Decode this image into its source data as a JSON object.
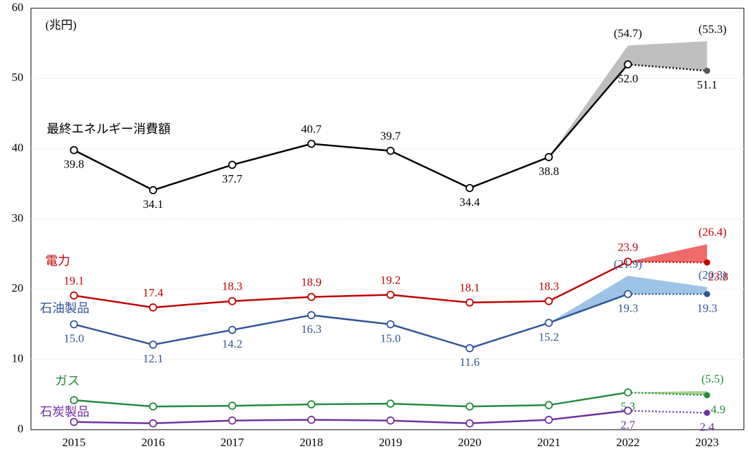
{
  "chart_data": {
    "type": "line",
    "unit_label": "(兆円)",
    "categories": [
      "2015",
      "2016",
      "2017",
      "2018",
      "2019",
      "2020",
      "2021",
      "2022",
      "2023"
    ],
    "ylim": [
      0,
      60
    ],
    "yticks": [
      0,
      10,
      20,
      30,
      40,
      50,
      60
    ],
    "grid": true,
    "dotted_last_segment": true,
    "series": [
      {
        "name": "最終エネルギー消費額",
        "color": "#000000",
        "band_color": "#bfbfbf",
        "values": [
          39.8,
          34.1,
          37.7,
          40.7,
          39.7,
          34.4,
          38.8,
          52.0,
          51.1
        ],
        "value_labels": [
          "39.8",
          "34.1",
          "37.7",
          "40.7",
          "39.7",
          "34.4",
          "38.8",
          "52.0",
          "51.1"
        ],
        "upper": [
          null,
          null,
          null,
          null,
          null,
          null,
          null,
          54.7,
          55.3
        ],
        "upper_labels": [
          null,
          null,
          null,
          null,
          null,
          null,
          null,
          "(54.7)",
          "(55.3)"
        ]
      },
      {
        "name": "電力",
        "color": "#c00000",
        "band_color": "#f06a6a",
        "values": [
          19.1,
          17.4,
          18.3,
          18.9,
          19.2,
          18.1,
          18.3,
          23.9,
          23.8
        ],
        "value_labels": [
          "19.1",
          "17.4",
          "18.3",
          "18.9",
          "19.2",
          "18.1",
          "18.3",
          "23.9",
          "23.8"
        ],
        "upper": [
          null,
          null,
          null,
          null,
          null,
          null,
          null,
          null,
          26.4
        ],
        "upper_labels": [
          null,
          null,
          null,
          null,
          null,
          null,
          null,
          null,
          "(26.4)"
        ]
      },
      {
        "name": "石油製品",
        "color": "#2f5597",
        "band_color": "#9dc3e6",
        "values": [
          15.0,
          12.1,
          14.2,
          16.3,
          15.0,
          11.6,
          15.2,
          19.3,
          19.3
        ],
        "value_labels": [
          "15.0",
          "12.1",
          "14.2",
          "16.3",
          "15.0",
          "11.6",
          "15.2",
          "19.3",
          "19.3"
        ],
        "upper": [
          null,
          null,
          null,
          null,
          null,
          null,
          null,
          21.9,
          20.3
        ],
        "upper_labels": [
          null,
          null,
          null,
          null,
          null,
          null,
          null,
          "(21.9)",
          "(20.3)"
        ]
      },
      {
        "name": "ガス",
        "color": "#1e8c3a",
        "band_color": "#a9d18e",
        "values": [
          4.2,
          3.3,
          3.4,
          3.6,
          3.7,
          3.3,
          3.5,
          5.3,
          4.9
        ],
        "value_labels": [
          null,
          null,
          null,
          null,
          null,
          null,
          null,
          "5.3",
          "4.9"
        ],
        "upper": [
          null,
          null,
          null,
          null,
          null,
          null,
          null,
          null,
          5.5
        ],
        "upper_labels": [
          null,
          null,
          null,
          null,
          null,
          null,
          null,
          null,
          "(5.5)"
        ]
      },
      {
        "name": "石炭製品",
        "color": "#7030a0",
        "band_color": "#c9a8e0",
        "values": [
          1.1,
          0.9,
          1.3,
          1.4,
          1.3,
          0.9,
          1.4,
          2.7,
          2.4
        ],
        "value_labels": [
          null,
          null,
          null,
          null,
          null,
          null,
          null,
          "2.7",
          "2.4"
        ],
        "upper": [
          null,
          null,
          null,
          null,
          null,
          null,
          null,
          null,
          null
        ],
        "upper_labels": [
          null,
          null,
          null,
          null,
          null,
          null,
          null,
          null,
          null
        ]
      }
    ]
  }
}
